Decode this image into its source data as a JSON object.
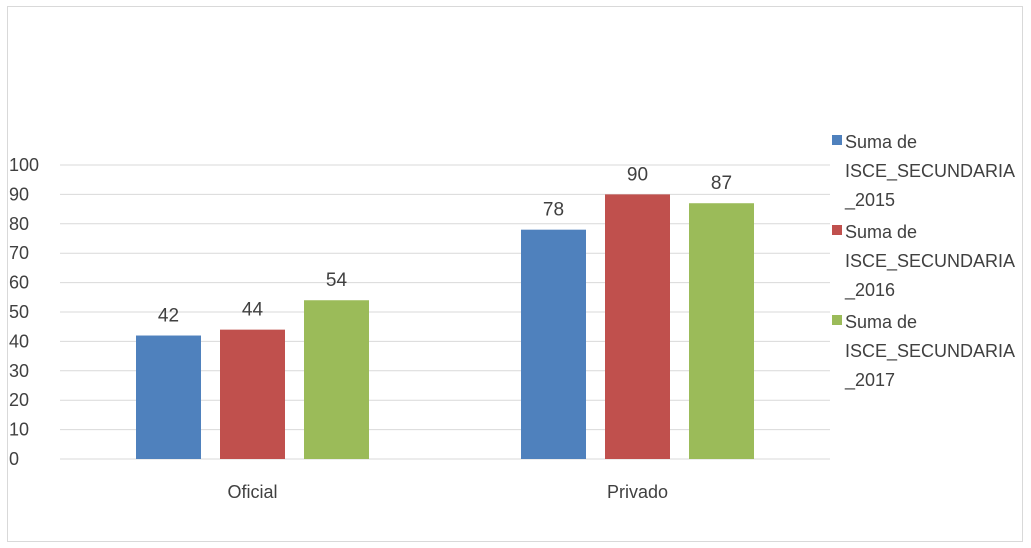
{
  "chart_data": {
    "type": "bar",
    "categories": [
      "Oficial",
      "Privado"
    ],
    "series": [
      {
        "name": "Suma de ISCE_SECUNDARIA _2015",
        "values": [
          42,
          78
        ],
        "color": "#4f81bd"
      },
      {
        "name": "Suma de ISCE_SECUNDARIA _2016",
        "values": [
          44,
          90
        ],
        "color": "#c0504d"
      },
      {
        "name": "Suma de ISCE_SECUNDARIA _2017",
        "values": [
          54,
          87
        ],
        "color": "#9bbb59"
      }
    ],
    "ylim": [
      0,
      100
    ],
    "yticks": [
      "0",
      "10",
      "20",
      "30",
      "40",
      "50",
      "60",
      "70",
      "80",
      "90",
      "100"
    ],
    "grid": true,
    "legend_position": "right",
    "data_labels": true
  },
  "legend": {
    "items": [
      {
        "label": "Suma de\nISCE_SECUNDARIA\n_2015"
      },
      {
        "label": "Suma de\nISCE_SECUNDARIA\n_2016"
      },
      {
        "label": "Suma de\nISCE_SECUNDARIA\n_2017"
      }
    ]
  }
}
